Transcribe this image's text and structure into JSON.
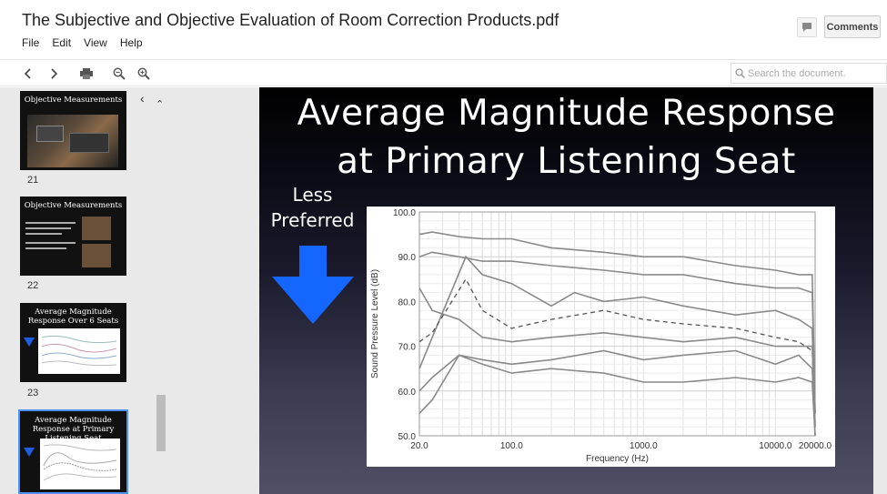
{
  "header": {
    "title": "The Subjective and Objective Evaluation of Room Correction Products.pdf",
    "menu": [
      "File",
      "Edit",
      "View",
      "Help"
    ],
    "comments_label": "Comments"
  },
  "toolbar": {
    "icons": [
      "chevron-left-icon",
      "chevron-right-icon",
      "print-icon",
      "zoom-out-icon",
      "zoom-in-icon"
    ],
    "search_placeholder": "Search the document."
  },
  "sidebar": {
    "thumbnails": [
      {
        "title": "Objective Measurements",
        "page": "21"
      },
      {
        "title": "Objective Measurements",
        "page": "22"
      },
      {
        "title": "Average Magnitude Response Over 6 Seats",
        "page": "23"
      },
      {
        "title": "Average Magnitude Response at Primary Listening Seat",
        "page": "",
        "selected": true
      }
    ],
    "thumb_less_pref": "Less Preferred"
  },
  "slide": {
    "title_line1": "Average Magnitude Response",
    "title_line2": "at Primary Listening Seat",
    "less_line1": "Less",
    "less_line2": "Preferred"
  },
  "chart_data": {
    "type": "line",
    "xlabel": "Frequency (Hz)",
    "ylabel": "Sound Pressure Level (dB)",
    "x_scale": "log",
    "xlim": [
      20,
      20000
    ],
    "ylim": [
      50,
      100
    ],
    "x_ticks": [
      "20.0",
      "100.0",
      "1000.0",
      "10000.0",
      "20000.0"
    ],
    "y_ticks": [
      "50.0",
      "60.0",
      "70.0",
      "80.0",
      "90.0",
      "100.0"
    ],
    "grid": true,
    "series": [
      {
        "style": "solid",
        "x": [
          20,
          25,
          40,
          60,
          100,
          200,
          500,
          1000,
          2000,
          5000,
          10000,
          15000,
          19000,
          20000
        ],
        "y": [
          95,
          95.5,
          94.5,
          94,
          94,
          92,
          91,
          90,
          90,
          88,
          87,
          86,
          86,
          55
        ]
      },
      {
        "style": "solid",
        "x": [
          20,
          25,
          40,
          60,
          100,
          200,
          500,
          1000,
          2000,
          5000,
          10000,
          15000,
          19000,
          20000
        ],
        "y": [
          90,
          91,
          90,
          89,
          89,
          88,
          87,
          86,
          86,
          84,
          83,
          83,
          82,
          55
        ]
      },
      {
        "style": "solid",
        "x": [
          20,
          25,
          45,
          60,
          100,
          200,
          300,
          500,
          1000,
          2000,
          5000,
          10000,
          15000,
          19000,
          20000
        ],
        "y": [
          65,
          72,
          90,
          86,
          84,
          79,
          82,
          80,
          81,
          79,
          77,
          78,
          76,
          74,
          52
        ]
      },
      {
        "style": "dashed",
        "x": [
          20,
          25,
          45,
          60,
          100,
          200,
          500,
          1000,
          2000,
          5000,
          10000,
          15000,
          19000,
          20000
        ],
        "y": [
          71,
          73,
          85,
          78,
          74,
          76,
          78,
          76,
          75,
          74,
          72,
          71,
          69,
          53
        ]
      },
      {
        "style": "solid",
        "x": [
          20,
          25,
          40,
          60,
          100,
          200,
          500,
          1000,
          2000,
          5000,
          10000,
          15000,
          19000,
          20000
        ],
        "y": [
          83,
          78,
          76,
          72,
          71,
          72,
          73,
          72,
          71,
          72,
          70,
          70,
          70,
          52
        ]
      },
      {
        "style": "solid",
        "x": [
          20,
          25,
          40,
          60,
          100,
          200,
          500,
          1000,
          2000,
          5000,
          10000,
          15000,
          19000,
          20000
        ],
        "y": [
          60,
          63,
          68,
          67,
          66,
          67,
          69,
          67,
          68,
          69,
          66,
          68,
          65,
          50
        ]
      },
      {
        "style": "solid",
        "x": [
          20,
          25,
          40,
          60,
          100,
          200,
          500,
          1000,
          2000,
          5000,
          10000,
          15000,
          19000,
          20000
        ],
        "y": [
          55,
          58,
          68,
          66,
          64,
          65,
          64,
          62,
          62,
          63,
          62,
          63,
          62,
          50
        ]
      }
    ]
  }
}
